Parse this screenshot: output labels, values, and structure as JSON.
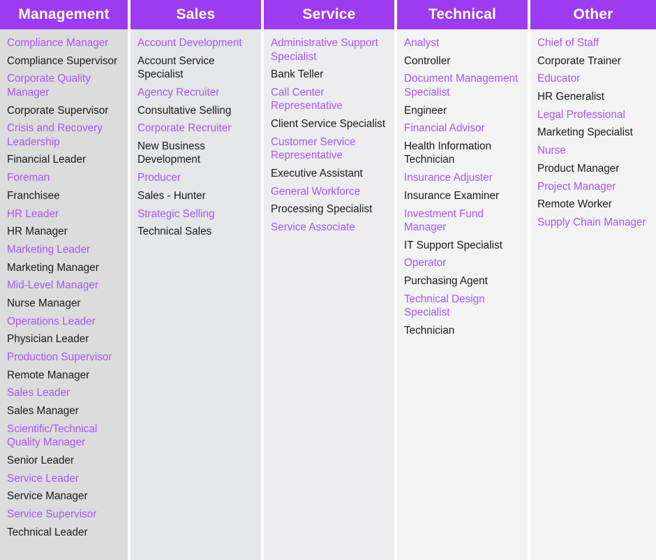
{
  "colors": {
    "header_bg": "#9d3bf0",
    "link": "#a855f7",
    "text": "#1a1a1a",
    "col_bg_dark": "#dcdcdc",
    "col_bg_mid": "#e5e6e8",
    "col_bg_light": "#ededef",
    "col_bg_lightest": "#f3f3f4"
  },
  "columns": [
    {
      "title": "Management",
      "items": [
        {
          "text": "Compliance Manager",
          "link": true
        },
        {
          "text": "Compliance Supervisor",
          "link": false
        },
        {
          "text": "Corporate Quality Manager",
          "link": true
        },
        {
          "text": "Corporate Supervisor",
          "link": false
        },
        {
          "text": "Crisis and Recovery Leadership",
          "link": true
        },
        {
          "text": "Financial Leader",
          "link": false
        },
        {
          "text": "Foreman",
          "link": true
        },
        {
          "text": "Franchisee",
          "link": false
        },
        {
          "text": "HR Leader",
          "link": true
        },
        {
          "text": "HR Manager",
          "link": false
        },
        {
          "text": "Marketing Leader",
          "link": true
        },
        {
          "text": "Marketing Manager",
          "link": false
        },
        {
          "text": "Mid-Level Manager",
          "link": true
        },
        {
          "text": "Nurse Manager",
          "link": false
        },
        {
          "text": "Operations Leader",
          "link": true
        },
        {
          "text": "Physician Leader",
          "link": false
        },
        {
          "text": "Production Supervisor",
          "link": true
        },
        {
          "text": "Remote Manager",
          "link": false
        },
        {
          "text": "Sales Leader",
          "link": true
        },
        {
          "text": "Sales Manager",
          "link": false
        },
        {
          "text": "Scientific/Technical Quality Manager",
          "link": true
        },
        {
          "text": "Senior Leader",
          "link": false
        },
        {
          "text": "Service Leader",
          "link": true
        },
        {
          "text": "Service Manager",
          "link": false
        },
        {
          "text": "Service Supervisor",
          "link": true
        },
        {
          "text": "Technical Leader",
          "link": false
        }
      ]
    },
    {
      "title": "Sales",
      "items": [
        {
          "text": "Account Development",
          "link": true
        },
        {
          "text": "Account Service Specialist",
          "link": false
        },
        {
          "text": "Agency Recruiter",
          "link": true
        },
        {
          "text": "Consultative Selling",
          "link": false
        },
        {
          "text": "Corporate Recruiter",
          "link": true
        },
        {
          "text": "New Business Development",
          "link": false
        },
        {
          "text": "Producer",
          "link": true
        },
        {
          "text": "Sales - Hunter",
          "link": false
        },
        {
          "text": "Strategic Selling",
          "link": true
        },
        {
          "text": "Technical Sales",
          "link": false
        }
      ]
    },
    {
      "title": "Service",
      "items": [
        {
          "text": "Administrative Support Specialist",
          "link": true
        },
        {
          "text": "Bank Teller",
          "link": false
        },
        {
          "text": "Call Center Representative",
          "link": true
        },
        {
          "text": "Client Service Specialist",
          "link": false
        },
        {
          "text": "Customer Service Representative",
          "link": true
        },
        {
          "text": "Executive Assistant",
          "link": false
        },
        {
          "text": "General Workforce",
          "link": true
        },
        {
          "text": "Processing Specialist",
          "link": false
        },
        {
          "text": "Service Associate",
          "link": true
        }
      ]
    },
    {
      "title": "Technical",
      "items": [
        {
          "text": "Analyst",
          "link": true
        },
        {
          "text": "Controller",
          "link": false
        },
        {
          "text": "Document Management Specialist",
          "link": true
        },
        {
          "text": "Engineer",
          "link": false
        },
        {
          "text": "Financial Advisor",
          "link": true
        },
        {
          "text": "Health Information Technician",
          "link": false
        },
        {
          "text": "Insurance Adjuster",
          "link": true
        },
        {
          "text": "Insurance Examiner",
          "link": false
        },
        {
          "text": "Investment Fund Manager",
          "link": true
        },
        {
          "text": "IT Support Specialist",
          "link": false
        },
        {
          "text": "Operator",
          "link": true
        },
        {
          "text": "Purchasing Agent",
          "link": false
        },
        {
          "text": "Technical Design Specialist",
          "link": true
        },
        {
          "text": "Technician",
          "link": false
        }
      ]
    },
    {
      "title": "Other",
      "items": [
        {
          "text": "Chief of Staff",
          "link": true
        },
        {
          "text": "Corporate Trainer",
          "link": false
        },
        {
          "text": "Educator",
          "link": true
        },
        {
          "text": "HR Generalist",
          "link": false
        },
        {
          "text": "Legal Professional",
          "link": true
        },
        {
          "text": "Marketing Specialist",
          "link": false
        },
        {
          "text": "Nurse",
          "link": true
        },
        {
          "text": "Product Manager",
          "link": false
        },
        {
          "text": "Project Manager",
          "link": true
        },
        {
          "text": "Remote Worker",
          "link": false
        },
        {
          "text": "Supply Chain Manager",
          "link": true
        }
      ]
    }
  ]
}
